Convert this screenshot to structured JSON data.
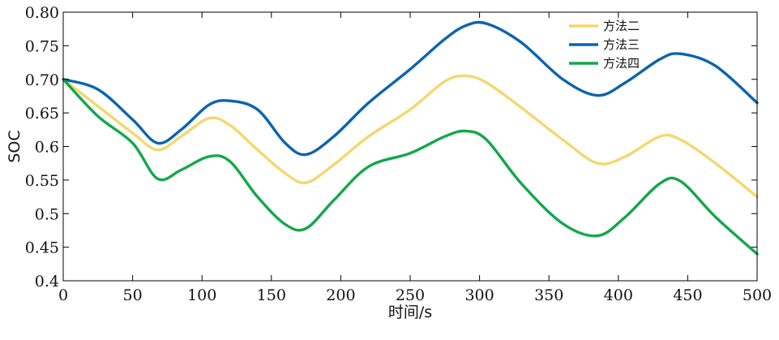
{
  "chart_data": {
    "type": "line",
    "xlabel": "时间/s",
    "ylabel": "SOC",
    "xlim": [
      0,
      500
    ],
    "ylim": [
      0.4,
      0.8
    ],
    "grid": false,
    "legend_position": "top-right",
    "x_ticks": [
      0,
      50,
      100,
      150,
      200,
      250,
      300,
      350,
      400,
      450,
      500
    ],
    "x_tick_labels": [
      "0",
      "50",
      "100",
      "150",
      "200",
      "250",
      "300",
      "350",
      "400",
      "450",
      "500"
    ],
    "y_ticks": [
      0.4,
      0.45,
      0.5,
      0.55,
      0.6,
      0.65,
      0.7,
      0.75,
      0.8
    ],
    "y_tick_labels": [
      "0.4",
      "0.45",
      "0.5",
      "0.55",
      "0.6",
      "0.65",
      "0.70",
      "0.75",
      "0.80"
    ],
    "x": [
      0,
      25,
      50,
      68,
      85,
      105,
      120,
      140,
      160,
      175,
      195,
      220,
      250,
      275,
      290,
      305,
      330,
      360,
      385,
      405,
      430,
      445,
      470,
      500
    ],
    "series": [
      {
        "name": "方法二",
        "color": "#f5d76e",
        "values": [
          0.7,
          0.66,
          0.62,
          0.595,
          0.615,
          0.642,
          0.632,
          0.595,
          0.56,
          0.546,
          0.573,
          0.615,
          0.655,
          0.697,
          0.705,
          0.695,
          0.658,
          0.61,
          0.575,
          0.585,
          0.615,
          0.61,
          0.575,
          0.525
        ]
      },
      {
        "name": "方法三",
        "color": "#0a64ae",
        "values": [
          0.7,
          0.685,
          0.64,
          0.605,
          0.625,
          0.662,
          0.668,
          0.655,
          0.605,
          0.588,
          0.615,
          0.665,
          0.715,
          0.76,
          0.78,
          0.783,
          0.755,
          0.7,
          0.676,
          0.695,
          0.73,
          0.738,
          0.72,
          0.665
        ]
      },
      {
        "name": "方法四",
        "color": "#12a84a",
        "values": [
          0.7,
          0.645,
          0.605,
          0.552,
          0.565,
          0.585,
          0.578,
          0.525,
          0.484,
          0.478,
          0.52,
          0.57,
          0.59,
          0.615,
          0.623,
          0.61,
          0.545,
          0.485,
          0.467,
          0.495,
          0.545,
          0.548,
          0.495,
          0.44
        ]
      }
    ]
  }
}
